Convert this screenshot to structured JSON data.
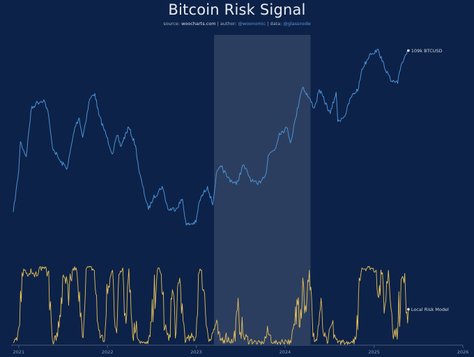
{
  "chart_data": {
    "type": "line",
    "title": "Bitcoin Risk Signal",
    "subtitle": {
      "source_label": "source:",
      "source_value": "woocharts.com",
      "author_label": "author:",
      "author_value": "@woonomic",
      "data_label": "data:",
      "data_value": "@glassnode",
      "separator": "|"
    },
    "x_ticks": [
      "2021",
      "2022",
      "2023",
      "2024",
      "2025",
      "2026"
    ],
    "xlim": [
      "2020-12-01",
      "2026-01-01"
    ],
    "highlight_range": [
      "2023-03-15",
      "2024-04-15"
    ],
    "colors": {
      "background": "#0d2248",
      "price": "#4a93d8",
      "risk": "#e6c15a",
      "highlight": "#ffffff",
      "axis": "#4a5a7a",
      "label": "#cfd8e6"
    },
    "series": [
      {
        "name": "BTCUSD",
        "end_label": "109k BTCUSD",
        "scale": "log",
        "ylim": [
          17000,
          120000
        ],
        "x": [
          "2020-12-10",
          "2021-01-01",
          "2021-01-08",
          "2021-02-01",
          "2021-02-21",
          "2021-03-13",
          "2021-04-14",
          "2021-05-01",
          "2021-05-19",
          "2021-06-22",
          "2021-07-20",
          "2021-08-20",
          "2021-09-07",
          "2021-09-21",
          "2021-10-20",
          "2021-11-10",
          "2021-11-26",
          "2021-12-15",
          "2022-01-22",
          "2022-02-10",
          "2022-02-24",
          "2022-03-29",
          "2022-04-26",
          "2022-05-12",
          "2022-06-18",
          "2022-07-08",
          "2022-08-14",
          "2022-09-07",
          "2022-10-10",
          "2022-11-05",
          "2022-11-21",
          "2022-12-31",
          "2023-01-14",
          "2023-02-16",
          "2023-03-10",
          "2023-03-24",
          "2023-04-14",
          "2023-05-10",
          "2023-06-15",
          "2023-07-13",
          "2023-08-17",
          "2023-09-11",
          "2023-10-16",
          "2023-10-24",
          "2023-11-24",
          "2023-12-08",
          "2024-01-11",
          "2024-01-23",
          "2024-02-14",
          "2024-03-05",
          "2024-03-14",
          "2024-05-01",
          "2024-05-21",
          "2024-07-05",
          "2024-07-29",
          "2024-08-05",
          "2024-09-06",
          "2024-09-27",
          "2024-10-29",
          "2024-11-12",
          "2024-12-05",
          "2024-12-17",
          "2025-01-20",
          "2025-02-03",
          "2025-02-28",
          "2025-03-10",
          "2025-04-08",
          "2025-04-22",
          "2025-05-10",
          "2025-05-22"
        ],
        "values": [
          18500,
          29000,
          40000,
          34000,
          57000,
          61000,
          63500,
          56000,
          38000,
          32000,
          30000,
          47000,
          52000,
          42000,
          64000,
          68000,
          54000,
          47000,
          35000,
          43000,
          38000,
          47000,
          38500,
          28500,
          19000,
          21500,
          24500,
          19000,
          19200,
          21300,
          16000,
          16500,
          20900,
          24500,
          20000,
          28000,
          30400,
          27000,
          25000,
          31000,
          26000,
          25000,
          28500,
          34500,
          37500,
          44000,
          46500,
          39500,
          52000,
          68000,
          73000,
          58000,
          71000,
          54500,
          69000,
          50000,
          54000,
          65000,
          72000,
          89000,
          99000,
          106000,
          109000,
          97000,
          84000,
          78000,
          76000,
          93000,
          104000,
          109000
        ]
      },
      {
        "name": "Local Risk Model",
        "end_label": "Local Risk Model",
        "scale": "linear",
        "ylim": [
          0,
          1
        ],
        "x": [
          "2020-12-10",
          "2020-12-25",
          "2021-01-05",
          "2021-01-15",
          "2021-01-25",
          "2021-02-10",
          "2021-02-20",
          "2021-03-10",
          "2021-03-25",
          "2021-04-14",
          "2021-05-01",
          "2021-05-15",
          "2021-05-20",
          "2021-06-10",
          "2021-06-25",
          "2021-07-10",
          "2021-07-25",
          "2021-08-10",
          "2021-08-25",
          "2021-09-05",
          "2021-09-20",
          "2021-10-05",
          "2021-10-20",
          "2021-11-08",
          "2021-11-20",
          "2021-12-05",
          "2021-12-20",
          "2022-01-05",
          "2022-01-22",
          "2022-02-05",
          "2022-02-20",
          "2022-03-05",
          "2022-03-15",
          "2022-03-30",
          "2022-04-15",
          "2022-04-30",
          "2022-05-10",
          "2022-05-25",
          "2022-06-10",
          "2022-06-25",
          "2022-07-10",
          "2022-07-25",
          "2022-08-10",
          "2022-08-25",
          "2022-09-10",
          "2022-09-25",
          "2022-10-10",
          "2022-10-25",
          "2022-11-08",
          "2022-11-20",
          "2022-12-10",
          "2022-12-31",
          "2023-01-10",
          "2023-01-20",
          "2023-02-01",
          "2023-02-15",
          "2023-03-01",
          "2023-03-20",
          "2023-04-10",
          "2023-05-01",
          "2023-06-01",
          "2023-06-25",
          "2023-07-15",
          "2023-08-10",
          "2023-09-10",
          "2023-10-01",
          "2023-10-24",
          "2023-11-15",
          "2023-12-10",
          "2024-01-05",
          "2024-01-25",
          "2024-02-10",
          "2024-02-25",
          "2024-03-05",
          "2024-03-14",
          "2024-03-25",
          "2024-04-10",
          "2024-04-25",
          "2024-05-10",
          "2024-05-25",
          "2024-06-10",
          "2024-06-25",
          "2024-07-10",
          "2024-07-25",
          "2024-08-05",
          "2024-08-20",
          "2024-09-05",
          "2024-09-20",
          "2024-10-05",
          "2024-10-20",
          "2024-11-01",
          "2024-11-12",
          "2024-11-25",
          "2024-12-10",
          "2024-12-25",
          "2025-01-10",
          "2025-01-20",
          "2025-02-01",
          "2025-02-15",
          "2025-03-01",
          "2025-03-15",
          "2025-03-30",
          "2025-04-10",
          "2025-04-25",
          "2025-05-10",
          "2025-05-22"
        ],
        "values": [
          0.02,
          0.05,
          0.25,
          0.92,
          0.95,
          0.88,
          0.97,
          0.9,
          0.96,
          0.99,
          0.92,
          0.3,
          0.05,
          0.1,
          0.6,
          0.85,
          0.5,
          0.95,
          0.98,
          0.55,
          0.1,
          0.97,
          0.99,
          0.95,
          0.3,
          0.1,
          0.05,
          0.75,
          0.95,
          0.2,
          0.9,
          0.98,
          0.4,
          0.97,
          0.1,
          0.3,
          0.05,
          0.02,
          0.01,
          0.1,
          0.5,
          0.95,
          0.9,
          0.2,
          0.05,
          0.7,
          0.15,
          0.85,
          0.3,
          0.05,
          0.08,
          0.1,
          0.9,
          0.95,
          0.7,
          0.2,
          0.05,
          0.25,
          0.05,
          0.1,
          0.03,
          0.4,
          0.1,
          0.05,
          0.02,
          0.02,
          0.15,
          0.02,
          0.03,
          0.05,
          0.02,
          0.25,
          0.6,
          0.45,
          0.85,
          0.5,
          0.95,
          0.1,
          0.05,
          0.45,
          0.1,
          0.02,
          0.25,
          0.1,
          0.02,
          0.05,
          0.02,
          0.01,
          0.02,
          0.1,
          0.85,
          0.98,
          0.97,
          0.99,
          0.97,
          0.95,
          0.6,
          0.9,
          0.5,
          0.95,
          0.4,
          0.1,
          0.3,
          0.85,
          0.7,
          0.45
        ]
      }
    ]
  }
}
